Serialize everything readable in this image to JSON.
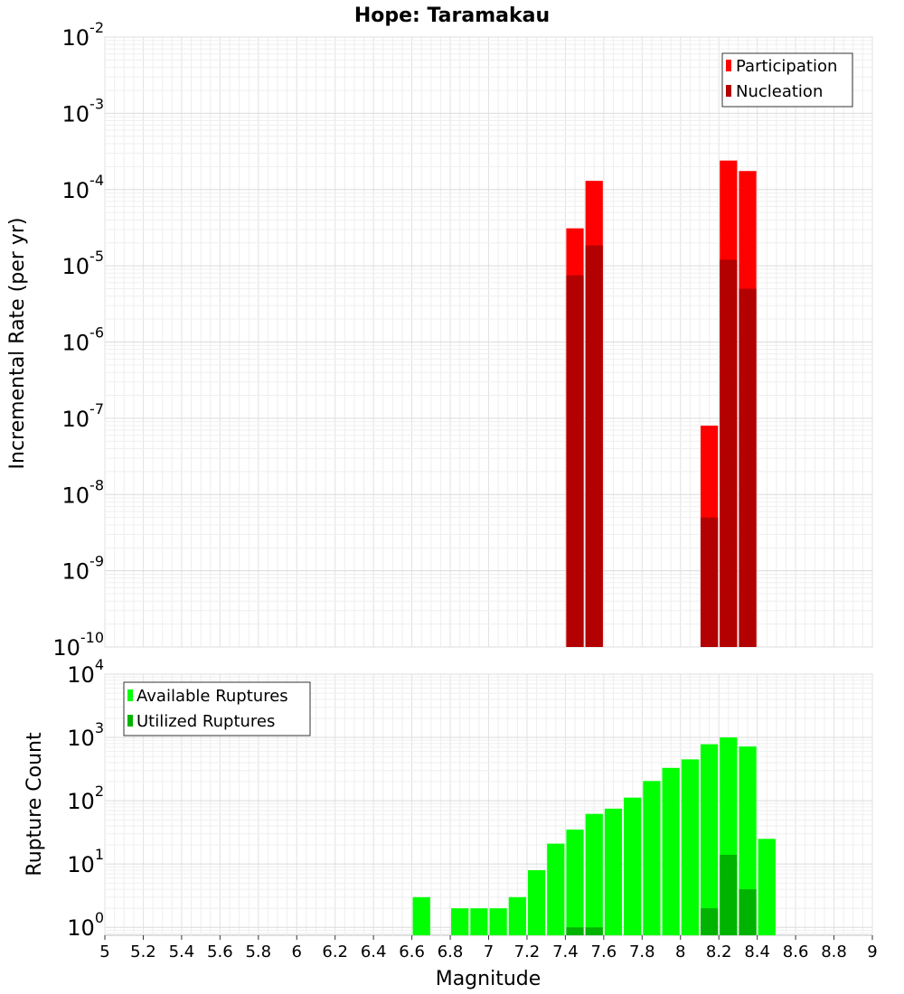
{
  "chart_data": [
    {
      "type": "bar",
      "title": "Hope: Taramakau",
      "xlabel": "",
      "ylabel": "Incremental Rate (per yr)",
      "yscale": "log",
      "xlim": [
        5,
        9
      ],
      "ylim": [
        1e-10,
        0.01
      ],
      "grid": true,
      "legend": {
        "placement": "top-right",
        "entries": [
          "Participation",
          "Nucleation"
        ]
      },
      "colors": {
        "Participation": "#ff0000",
        "Nucleation": "#b30000"
      },
      "y_ticks": [
        {
          "base": "10",
          "exp": "-10",
          "value": 1e-10
        },
        {
          "base": "10",
          "exp": "-9",
          "value": 1e-09
        },
        {
          "base": "10",
          "exp": "-8",
          "value": 1e-08
        },
        {
          "base": "10",
          "exp": "-7",
          "value": 1e-07
        },
        {
          "base": "10",
          "exp": "-6",
          "value": 1e-06
        },
        {
          "base": "10",
          "exp": "-5",
          "value": 1e-05
        },
        {
          "base": "10",
          "exp": "-4",
          "value": 0.0001
        },
        {
          "base": "10",
          "exp": "-3",
          "value": 0.001
        },
        {
          "base": "10",
          "exp": "-2",
          "value": 0.01
        }
      ],
      "series": [
        {
          "name": "Participation",
          "x": [
            7.45,
            7.55,
            8.15,
            8.25,
            8.35
          ],
          "values": [
            3.1e-05,
            0.00013,
            8e-08,
            0.00024,
            0.000175
          ]
        },
        {
          "name": "Nucleation",
          "x": [
            7.45,
            7.55,
            8.15,
            8.25,
            8.35
          ],
          "values": [
            7.5e-06,
            1.85e-05,
            5e-09,
            1.2e-05,
            5e-06
          ]
        }
      ]
    },
    {
      "type": "bar",
      "title": "",
      "xlabel": "Magnitude",
      "ylabel": "Rupture Count",
      "yscale": "log",
      "xlim": [
        5,
        9
      ],
      "ylim": [
        0.75,
        10000
      ],
      "grid": true,
      "legend": {
        "placement": "top-left",
        "entries": [
          "Available Ruptures",
          "Utilized Ruptures"
        ]
      },
      "colors": {
        "Available Ruptures": "#00ff00",
        "Utilized Ruptures": "#00b300"
      },
      "x_ticks": [
        "5",
        "5.2",
        "5.4",
        "5.6",
        "5.8",
        "6",
        "6.2",
        "6.4",
        "6.6",
        "6.8",
        "7",
        "7.2",
        "7.4",
        "7.6",
        "7.8",
        "8",
        "8.2",
        "8.4",
        "8.6",
        "8.8",
        "9"
      ],
      "y_ticks": [
        {
          "base": "10",
          "exp": "0",
          "value": 1
        },
        {
          "base": "10",
          "exp": "1",
          "value": 10
        },
        {
          "base": "10",
          "exp": "2",
          "value": 100
        },
        {
          "base": "10",
          "exp": "3",
          "value": 1000
        },
        {
          "base": "10",
          "exp": "4",
          "value": 10000
        }
      ],
      "series": [
        {
          "name": "Available Ruptures",
          "x": [
            6.65,
            6.85,
            6.95,
            7.05,
            7.15,
            7.25,
            7.35,
            7.45,
            7.55,
            7.65,
            7.75,
            7.85,
            7.95,
            8.05,
            8.15,
            8.25,
            8.35,
            8.45
          ],
          "values": [
            3,
            2,
            2,
            2,
            3,
            8,
            21,
            35,
            62,
            75,
            112,
            205,
            330,
            450,
            780,
            1000,
            720,
            25
          ]
        },
        {
          "name": "Utilized Ruptures",
          "x": [
            7.45,
            7.55,
            8.15,
            8.25,
            8.35
          ],
          "values": [
            1,
            1,
            2,
            14,
            4
          ]
        }
      ]
    }
  ]
}
